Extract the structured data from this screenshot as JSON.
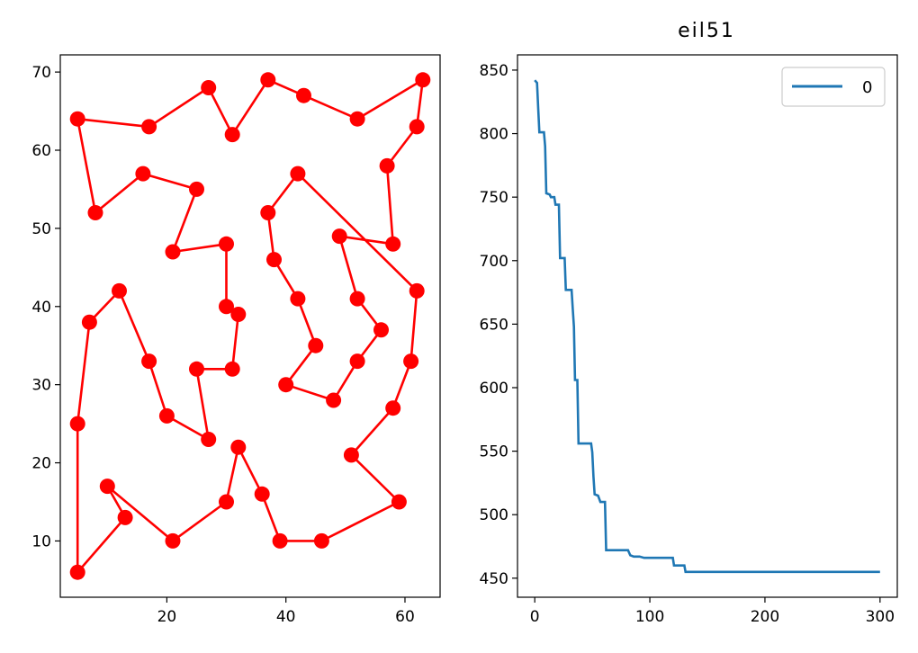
{
  "chart_data": [
    {
      "type": "line",
      "title": "",
      "xlabel": "",
      "ylabel": "",
      "xlim": [
        2.1,
        65.9
      ],
      "ylim": [
        2.8,
        72.2
      ],
      "xticks": [
        20,
        40,
        60
      ],
      "yticks": [
        10,
        20,
        30,
        40,
        50,
        60,
        70
      ],
      "grid": false,
      "series": [
        {
          "color": "#ff0000",
          "marker": "circle",
          "tour": [
            [
              5,
              64
            ],
            [
              17,
              63
            ],
            [
              27,
              68
            ],
            [
              31,
              62
            ],
            [
              37,
              69
            ],
            [
              43,
              67
            ],
            [
              52,
              64
            ],
            [
              63,
              69
            ],
            [
              62,
              63
            ],
            [
              57,
              58
            ],
            [
              58,
              48
            ],
            [
              49,
              49
            ],
            [
              52,
              41
            ],
            [
              56,
              37
            ],
            [
              52,
              33
            ],
            [
              48,
              28
            ],
            [
              40,
              30
            ],
            [
              45,
              35
            ],
            [
              42,
              41
            ],
            [
              38,
              46
            ],
            [
              37,
              52
            ],
            [
              42,
              57
            ],
            [
              62,
              42
            ],
            [
              61,
              33
            ],
            [
              58,
              27
            ],
            [
              51,
              21
            ],
            [
              59,
              15
            ],
            [
              46,
              10
            ],
            [
              39,
              10
            ],
            [
              36,
              16
            ],
            [
              32,
              22
            ],
            [
              30,
              15
            ],
            [
              21,
              10
            ],
            [
              10,
              17
            ],
            [
              13,
              13
            ],
            [
              5,
              6
            ],
            [
              5,
              25
            ],
            [
              7,
              38
            ],
            [
              12,
              42
            ],
            [
              17,
              33
            ],
            [
              20,
              26
            ],
            [
              27,
              23
            ],
            [
              25,
              32
            ],
            [
              31,
              32
            ],
            [
              32,
              39
            ],
            [
              30,
              40
            ],
            [
              30,
              48
            ],
            [
              21,
              47
            ],
            [
              25,
              55
            ],
            [
              16,
              57
            ],
            [
              8,
              52
            ],
            [
              5,
              64
            ]
          ]
        }
      ]
    },
    {
      "type": "line",
      "title": "eil51",
      "xlabel": "",
      "ylabel": "",
      "xlim": [
        -15,
        315
      ],
      "ylim": [
        435,
        862
      ],
      "xticks": [
        0,
        100,
        200,
        300
      ],
      "yticks": [
        450,
        500,
        550,
        600,
        650,
        700,
        750,
        800,
        850
      ],
      "grid": false,
      "legend": {
        "placement": "top-right",
        "entries": [
          "0"
        ]
      },
      "series": [
        {
          "name": "0",
          "color": "#1f77b4",
          "step_points": [
            [
              0,
              842
            ],
            [
              2,
              840
            ],
            [
              3,
              820
            ],
            [
              4,
              801
            ],
            [
              8,
              801
            ],
            [
              9,
              790
            ],
            [
              10,
              753
            ],
            [
              13,
              752
            ],
            [
              14,
              750
            ],
            [
              17,
              750
            ],
            [
              18,
              744
            ],
            [
              21,
              744
            ],
            [
              22,
              702
            ],
            [
              26,
              702
            ],
            [
              27,
              677
            ],
            [
              32,
              677
            ],
            [
              33,
              662
            ],
            [
              34,
              648
            ],
            [
              35,
              606
            ],
            [
              37,
              606
            ],
            [
              38,
              556
            ],
            [
              49,
              556
            ],
            [
              50,
              549
            ],
            [
              51,
              530
            ],
            [
              52,
              516
            ],
            [
              55,
              515
            ],
            [
              57,
              510
            ],
            [
              61,
              510
            ],
            [
              62,
              472
            ],
            [
              81,
              472
            ],
            [
              83,
              468
            ],
            [
              86,
              467
            ],
            [
              91,
              467
            ],
            [
              95,
              466
            ],
            [
              100,
              466
            ],
            [
              102,
              466
            ],
            [
              120,
              466
            ],
            [
              121,
              460
            ],
            [
              130,
              460
            ],
            [
              131,
              455
            ],
            [
              300,
              455
            ]
          ]
        }
      ]
    }
  ]
}
